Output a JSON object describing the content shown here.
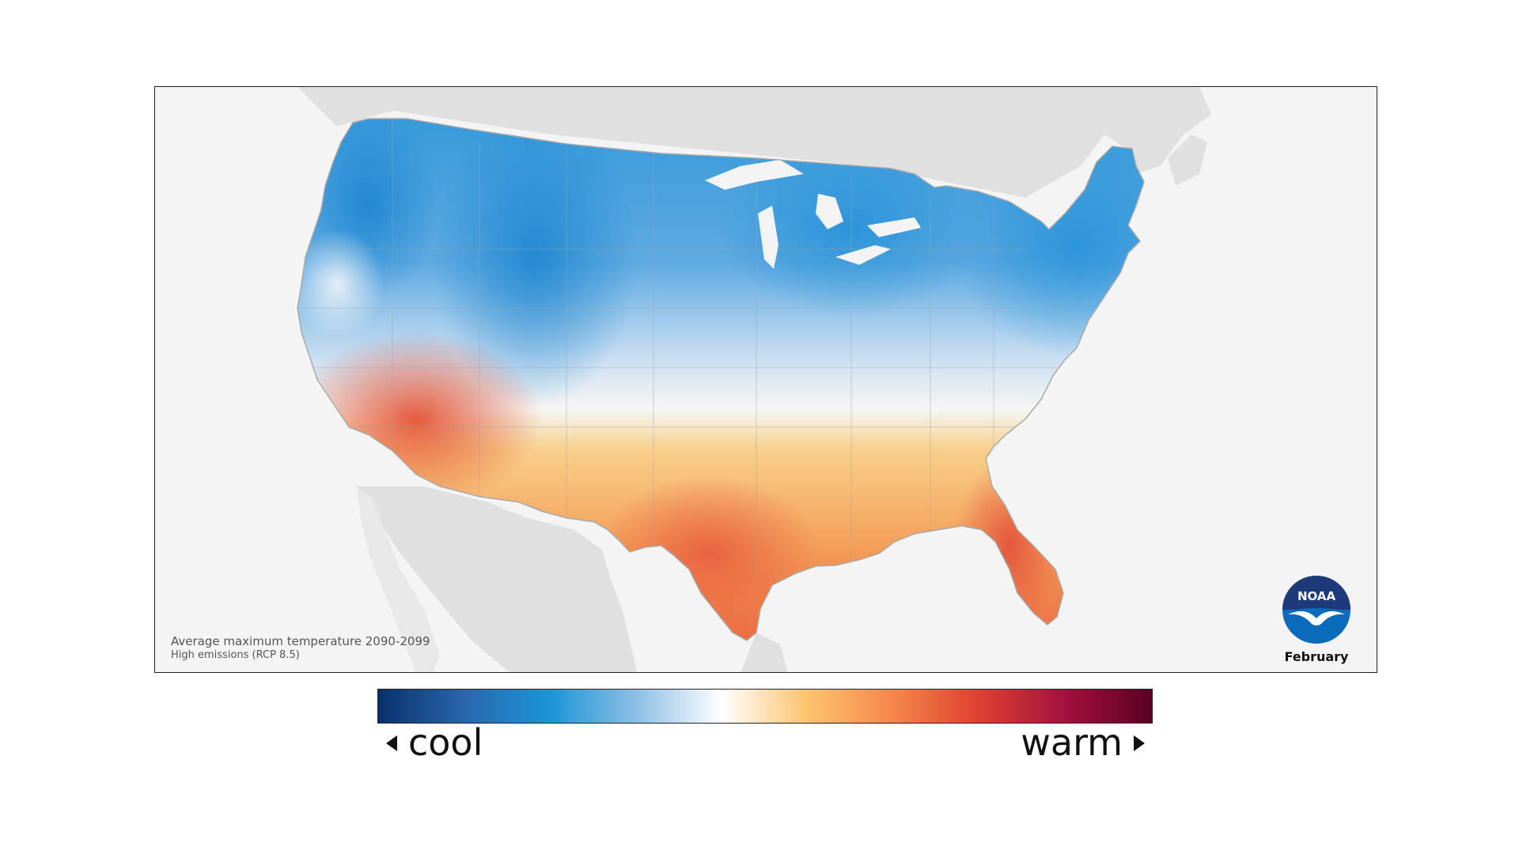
{
  "map": {
    "caption_line1": "Average maximum temperature 2090-2099",
    "caption_line2": "High emissions (RCP 8.5)",
    "month": "February",
    "logo_text": "NOAA",
    "colors": {
      "background": "#f4f4f4",
      "land_outside": "#e0e0e0",
      "cold": "#1e8fd6",
      "mid_cold": "#7fbbe8",
      "neutral": "#f6f8fb",
      "mid_warm": "#f7bd6c",
      "warm": "#ef7a3c",
      "hot": "#dd4a2e"
    }
  },
  "legend": {
    "cool_label": "cool",
    "warm_label": "warm",
    "gradient": [
      "#08306b",
      "#2a66ad",
      "#1a96d6",
      "#8dbfe6",
      "#ffffff",
      "#fdc36d",
      "#f5854a",
      "#dd4030",
      "#a3103f",
      "#5a0022"
    ]
  }
}
